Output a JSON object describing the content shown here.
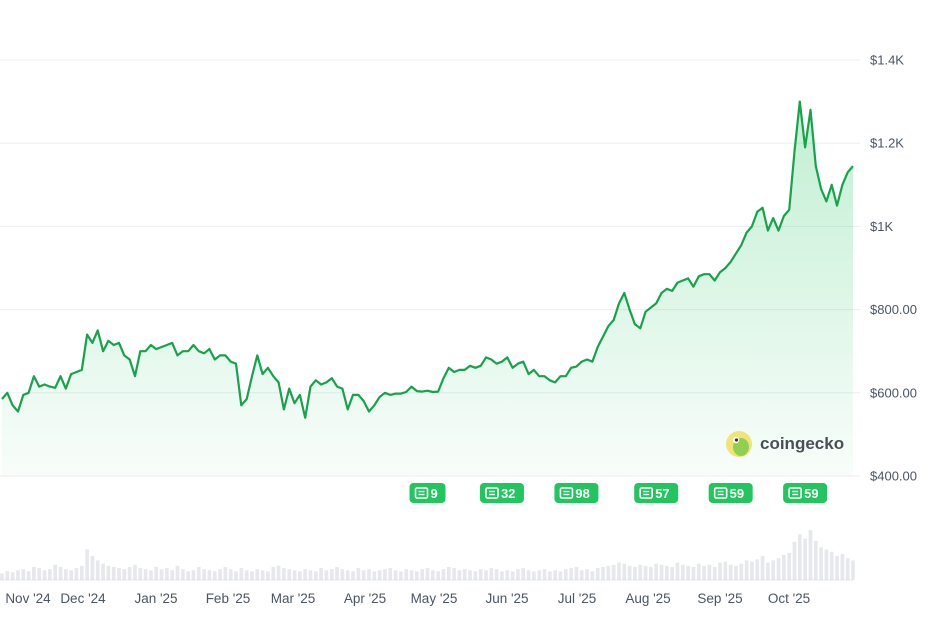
{
  "chart_data": {
    "type": "area",
    "title": "",
    "xlabel": "",
    "ylabel": "",
    "x_labels": [
      "Nov '24",
      "Dec '24",
      "Jan '25",
      "Feb '25",
      "Mar '25",
      "Apr '25",
      "May '25",
      "Jun '25",
      "Jul '25",
      "Aug '25",
      "Sep '25",
      "Oct '25"
    ],
    "y_ticks": [
      400,
      600,
      800,
      1000,
      1200,
      1400
    ],
    "y_tick_labels": [
      "$400.00",
      "$600.00",
      "$800.00",
      "$1K",
      "$1.2K",
      "$1.4K"
    ],
    "ylim": [
      350,
      1480
    ],
    "grid": true,
    "line_color": "#16a34a",
    "fill_color": "#22c55e",
    "series": [
      {
        "values": [
          585,
          600,
          570,
          555,
          595,
          600,
          640,
          615,
          620,
          615,
          612,
          640,
          610,
          645,
          650,
          655,
          740,
          720,
          750,
          700,
          725,
          715,
          720,
          690,
          680,
          640,
          700,
          700,
          715,
          705,
          710,
          715,
          720,
          690,
          700,
          700,
          715,
          700,
          695,
          705,
          680,
          690,
          690,
          675,
          670,
          570,
          585,
          640,
          690,
          645,
          660,
          640,
          625,
          560,
          610,
          575,
          595,
          540,
          615,
          630,
          620,
          625,
          635,
          615,
          610,
          560,
          595,
          595,
          580,
          555,
          570,
          590,
          600,
          595,
          598,
          598,
          602,
          615,
          604,
          603,
          605,
          602,
          603,
          635,
          660,
          650,
          655,
          655,
          665,
          660,
          665,
          685,
          680,
          670,
          675,
          685,
          660,
          670,
          675,
          645,
          655,
          640,
          640,
          630,
          625,
          640,
          640,
          660,
          663,
          675,
          680,
          675,
          710,
          735,
          760,
          775,
          815,
          840,
          800,
          765,
          755,
          795,
          805,
          815,
          840,
          850,
          845,
          865,
          870,
          875,
          855,
          880,
          885,
          885,
          870,
          890,
          900,
          915,
          935,
          955,
          985,
          1000,
          1035,
          1045,
          990,
          1020,
          990,
          1025,
          1040,
          1180,
          1300,
          1190,
          1280,
          1145,
          1090,
          1060,
          1100,
          1050,
          1100,
          1130,
          1145
        ],
        "volume": [
          6,
          8,
          7,
          9,
          10,
          8,
          12,
          11,
          9,
          10,
          14,
          12,
          10,
          9,
          11,
          13,
          28,
          22,
          18,
          15,
          13,
          12,
          11,
          10,
          12,
          14,
          11,
          10,
          9,
          12,
          10,
          11,
          9,
          13,
          10,
          8,
          9,
          12,
          10,
          9,
          8,
          10,
          12,
          10,
          8,
          11,
          9,
          8,
          10,
          9,
          8,
          12,
          13,
          11,
          10,
          9,
          8,
          10,
          9,
          8,
          11,
          9,
          10,
          12,
          10,
          9,
          8,
          11,
          9,
          10,
          8,
          9,
          10,
          11,
          9,
          8,
          10,
          9,
          8,
          10,
          11,
          9,
          8,
          10,
          12,
          11,
          9,
          10,
          9,
          8,
          10,
          9,
          11,
          10,
          8,
          9,
          8,
          10,
          11,
          9,
          8,
          9,
          10,
          8,
          9,
          8,
          10,
          11,
          12,
          9,
          10,
          8,
          11,
          12,
          13,
          14,
          16,
          15,
          13,
          12,
          14,
          13,
          12,
          15,
          14,
          13,
          12,
          16,
          14,
          13,
          12,
          15,
          13,
          14,
          12,
          16,
          17,
          14,
          13,
          15,
          18,
          17,
          19,
          22,
          16,
          18,
          20,
          23,
          25,
          35,
          42,
          38,
          46,
          36,
          30,
          28,
          26,
          22,
          24,
          20,
          18
        ]
      }
    ],
    "news_markers": [
      {
        "label": "9",
        "index": 80
      },
      {
        "label": "32",
        "index": 94
      },
      {
        "label": "98",
        "index": 108
      },
      {
        "label": "57",
        "index": 123
      },
      {
        "label": "59",
        "index": 137
      },
      {
        "label": "59",
        "index": 151
      }
    ],
    "brand": {
      "name": "coingecko"
    }
  }
}
